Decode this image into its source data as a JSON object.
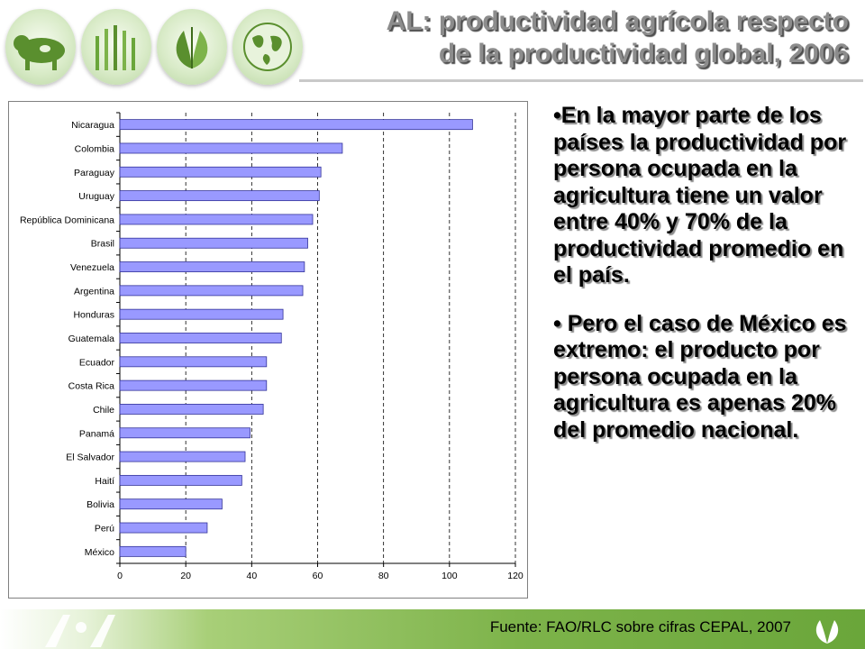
{
  "header": {
    "title_line1": "AL: productividad agrícola respecto",
    "title_line2": "de la productividad global, 2006",
    "icons": [
      "cow-icon",
      "crops-icon",
      "leaves-icon",
      "globe-icon"
    ]
  },
  "chart_data": {
    "type": "bar",
    "orientation": "horizontal",
    "categories": [
      "Nicaragua",
      "Colombia",
      "Paraguay",
      "Uruguay",
      "República Dominicana",
      "Brasil",
      "Venezuela",
      "Argentina",
      "Honduras",
      "Guatemala",
      "Ecuador",
      "Costa Rica",
      "Chile",
      "Panamá",
      "El Salvador",
      "Haití",
      "Bolivia",
      "Perú",
      "México"
    ],
    "values": [
      107,
      67.5,
      61,
      60.5,
      58.5,
      57,
      56,
      55.5,
      49.5,
      49,
      44.5,
      44.5,
      43.5,
      39.5,
      38,
      37,
      31,
      26.5,
      20
    ],
    "xlim": [
      0,
      120
    ],
    "xticks": [
      "0",
      "20",
      "40",
      "60",
      "80",
      "100",
      "120"
    ],
    "bar_color": "#9999ff",
    "gridlines": "vertical dashed",
    "title": "",
    "xlabel": "",
    "ylabel": ""
  },
  "bullets": [
    "•En la mayor parte de los países la productividad por persona ocupada en la agricultura tiene un valor entre 40% y 70% de la productividad promedio en el país.",
    "• Pero el caso de México es extremo: el producto por persona ocupada en la agricultura es apenas 20% del promedio nacional."
  ],
  "footer": {
    "source": "Fuente: FAO/RLC sobre cifras CEPAL, 2007"
  },
  "colors": {
    "footer_green": "#7db34a",
    "title_gray": "#8c8c8c"
  }
}
